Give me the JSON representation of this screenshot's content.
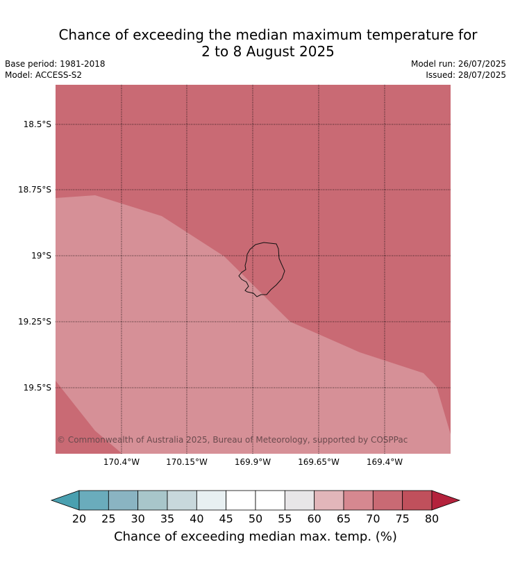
{
  "title_line1": "Chance of exceeding the median maximum temperature for",
  "title_line2": "2 to 8 August 2025",
  "meta": {
    "base_period": "Base period: 1981-2018",
    "model": "Model: ACCESS-S2",
    "model_run": "Model run: 26/07/2025",
    "issued": "Issued: 28/07/2025"
  },
  "map": {
    "lat_labels": [
      "18.5°S",
      "18.75°S",
      "19°S",
      "19.25°S",
      "19.5°S"
    ],
    "lon_labels": [
      "170.4°W",
      "170.15°W",
      "169.9°W",
      "169.65°W",
      "169.4°W"
    ],
    "copyright": "© Commonwealth of Australia 2025, Bureau of Meteorology, supported by COSPPac",
    "zones": [
      {
        "name": "70-75%",
        "color": "#c96a74"
      },
      {
        "name": "65-70%",
        "color": "#d69097"
      }
    ]
  },
  "colorbar": {
    "ticks": [
      "20",
      "25",
      "30",
      "35",
      "40",
      "45",
      "50",
      "55",
      "60",
      "65",
      "70",
      "75",
      "80"
    ],
    "colors": [
      "#4aa0b0",
      "#6aacbc",
      "#8ab4c2",
      "#a8c6ca",
      "#c8d8dc",
      "#e8f0f2",
      "#ffffff",
      "#ffffff",
      "#e8e6e8",
      "#e2b6ba",
      "#d68890",
      "#c96a74",
      "#c0505c",
      "#b4223c"
    ],
    "label": "Chance of exceeding median max. temp. (%)"
  }
}
